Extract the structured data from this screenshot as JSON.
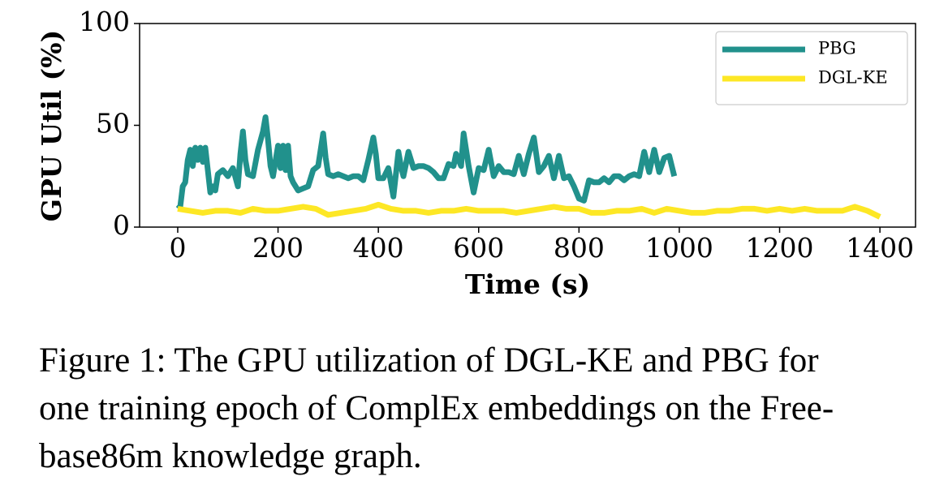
{
  "chart_data": {
    "type": "line",
    "xlabel": "Time (s)",
    "ylabel": "GPU Util (%)",
    "xlim": [
      -76,
      1471
    ],
    "ylim": [
      0,
      100
    ],
    "xticks": [
      0,
      200,
      400,
      600,
      800,
      1000,
      1200,
      1400
    ],
    "yticks": [
      0,
      50,
      100
    ],
    "grid": false,
    "legend": "upper right",
    "series": [
      {
        "name": "PBG",
        "color": "#21918c",
        "x": [
          0,
          5,
          10,
          15,
          20,
          25,
          30,
          35,
          40,
          45,
          50,
          55,
          60,
          65,
          70,
          75,
          80,
          90,
          100,
          110,
          120,
          125,
          130,
          135,
          140,
          150,
          160,
          170,
          175,
          180,
          185,
          190,
          200,
          205,
          210,
          215,
          220,
          225,
          230,
          240,
          250,
          260,
          270,
          280,
          290,
          295,
          300,
          310,
          320,
          330,
          340,
          350,
          360,
          370,
          380,
          390,
          395,
          400,
          410,
          420,
          430,
          440,
          445,
          450,
          460,
          470,
          480,
          490,
          500,
          510,
          520,
          530,
          540,
          550,
          555,
          565,
          570,
          575,
          580,
          590,
          600,
          610,
          620,
          630,
          640,
          650,
          660,
          670,
          680,
          690,
          700,
          710,
          720,
          730,
          740,
          750,
          760,
          770,
          780,
          790,
          800,
          810,
          820,
          830,
          840,
          850,
          860,
          870,
          880,
          890,
          900,
          910,
          920,
          930,
          940,
          950,
          960,
          970,
          980,
          990
        ],
        "values": [
          11,
          10,
          20,
          22,
          33,
          38,
          30,
          39,
          33,
          39,
          32,
          39,
          28,
          17,
          20,
          18,
          26,
          28,
          25,
          29,
          20,
          36,
          47,
          33,
          26,
          25,
          38,
          47,
          54,
          43,
          30,
          25,
          40,
          29,
          40,
          28,
          40,
          25,
          22,
          18,
          19,
          20,
          28,
          30,
          46,
          34,
          26,
          25,
          26,
          25,
          24,
          25,
          25,
          23,
          33,
          44,
          36,
          24,
          24,
          29,
          15,
          37,
          30,
          25,
          37,
          29,
          30,
          30,
          29,
          27,
          24,
          24,
          31,
          30,
          36,
          30,
          46,
          38,
          30,
          17,
          29,
          28,
          38,
          25,
          30,
          27,
          27,
          26,
          35,
          26,
          36,
          44,
          27,
          30,
          35,
          24,
          35,
          24,
          25,
          20,
          14,
          13,
          23,
          22,
          22,
          24,
          22,
          25,
          25,
          23,
          25,
          26,
          25,
          37,
          27,
          38,
          27,
          34,
          35,
          25
        ]
      },
      {
        "name": "DGL-KE",
        "color": "#fde725",
        "x": [
          0,
          25,
          50,
          75,
          100,
          125,
          150,
          175,
          200,
          225,
          250,
          275,
          300,
          325,
          350,
          375,
          400,
          425,
          450,
          475,
          500,
          525,
          550,
          575,
          600,
          625,
          650,
          675,
          700,
          725,
          750,
          775,
          800,
          825,
          850,
          875,
          900,
          925,
          950,
          975,
          1000,
          1025,
          1050,
          1075,
          1100,
          1125,
          1150,
          1175,
          1200,
          1225,
          1250,
          1275,
          1300,
          1325,
          1350,
          1375,
          1400
        ],
        "values": [
          9,
          8,
          7,
          8,
          8,
          7,
          9,
          8,
          8,
          9,
          10,
          9,
          6,
          7,
          8,
          9,
          11,
          9,
          8,
          8,
          7,
          8,
          8,
          9,
          8,
          8,
          8,
          7,
          8,
          9,
          10,
          9,
          9,
          7,
          7,
          8,
          8,
          9,
          7,
          9,
          8,
          7,
          7,
          8,
          8,
          9,
          9,
          8,
          9,
          8,
          9,
          8,
          8,
          8,
          10,
          8,
          5
        ]
      }
    ],
    "caption": [
      "Figure 1: The GPU utilization of DGL-KE and PBG for",
      "one training epoch of ComplEx embeddings on the Free-",
      "base86m knowledge graph."
    ]
  }
}
